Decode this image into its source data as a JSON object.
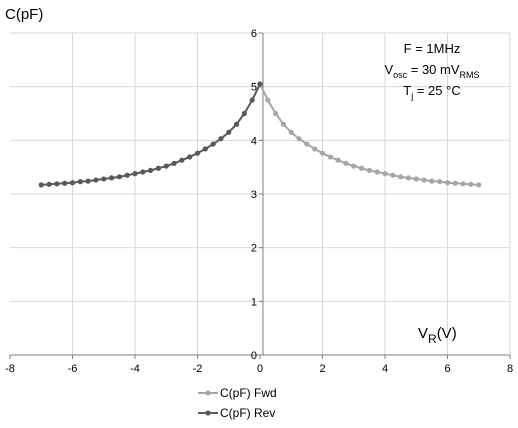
{
  "chart_data": {
    "type": "scatter",
    "y_axis_title": "C(pF)",
    "x_axis_title_main": "V",
    "x_axis_title_sub": "R",
    "x_axis_title_unit": "(V)",
    "xlim": [
      -8,
      8
    ],
    "ylim": [
      0,
      6
    ],
    "x_ticks": [
      "-8",
      "-6",
      "-4",
      "-2",
      "0",
      "2",
      "4",
      "6",
      "8"
    ],
    "y_ticks": [
      "0",
      "1",
      "2",
      "3",
      "4",
      "5",
      "6"
    ],
    "grid": true,
    "legend_position": "bottom",
    "annotation": {
      "line1": "F = 1MHz",
      "line2_main": "V",
      "line2_sub1": "osc",
      "line2_mid": " = 30 mV",
      "line2_sub2": "RMS",
      "line3_main": "T",
      "line3_sub": "j",
      "line3_rest": " = 25 °C"
    },
    "series": [
      {
        "name": "C(pF) Fwd",
        "color": "#a6a6a6",
        "x": [
          0,
          0.25,
          0.5,
          0.75,
          1,
          1.25,
          1.5,
          1.75,
          2,
          2.25,
          2.5,
          2.75,
          3,
          3.25,
          3.5,
          3.75,
          4,
          4.25,
          4.5,
          4.75,
          5,
          5.25,
          5.5,
          5.75,
          6,
          6.25,
          6.5,
          6.75,
          7
        ],
        "y": [
          5.05,
          4.75,
          4.5,
          4.3,
          4.15,
          4.03,
          3.93,
          3.84,
          3.76,
          3.69,
          3.63,
          3.57,
          3.52,
          3.48,
          3.44,
          3.41,
          3.38,
          3.35,
          3.32,
          3.3,
          3.28,
          3.26,
          3.24,
          3.23,
          3.21,
          3.2,
          3.19,
          3.18,
          3.17
        ]
      },
      {
        "name": "C(pF) Rev",
        "color": "#595959",
        "x": [
          -7,
          -6.75,
          -6.5,
          -6.25,
          -6,
          -5.75,
          -5.5,
          -5.25,
          -5,
          -4.75,
          -4.5,
          -4.25,
          -4,
          -3.75,
          -3.5,
          -3.25,
          -3,
          -2.75,
          -2.5,
          -2.25,
          -2,
          -1.75,
          -1.5,
          -1.25,
          -1,
          -0.75,
          -0.5,
          -0.25,
          0
        ],
        "y": [
          3.17,
          3.18,
          3.19,
          3.2,
          3.21,
          3.23,
          3.24,
          3.26,
          3.28,
          3.3,
          3.32,
          3.35,
          3.38,
          3.41,
          3.44,
          3.48,
          3.52,
          3.57,
          3.63,
          3.69,
          3.76,
          3.84,
          3.93,
          4.03,
          4.15,
          4.3,
          4.5,
          4.75,
          5.05
        ]
      }
    ]
  }
}
